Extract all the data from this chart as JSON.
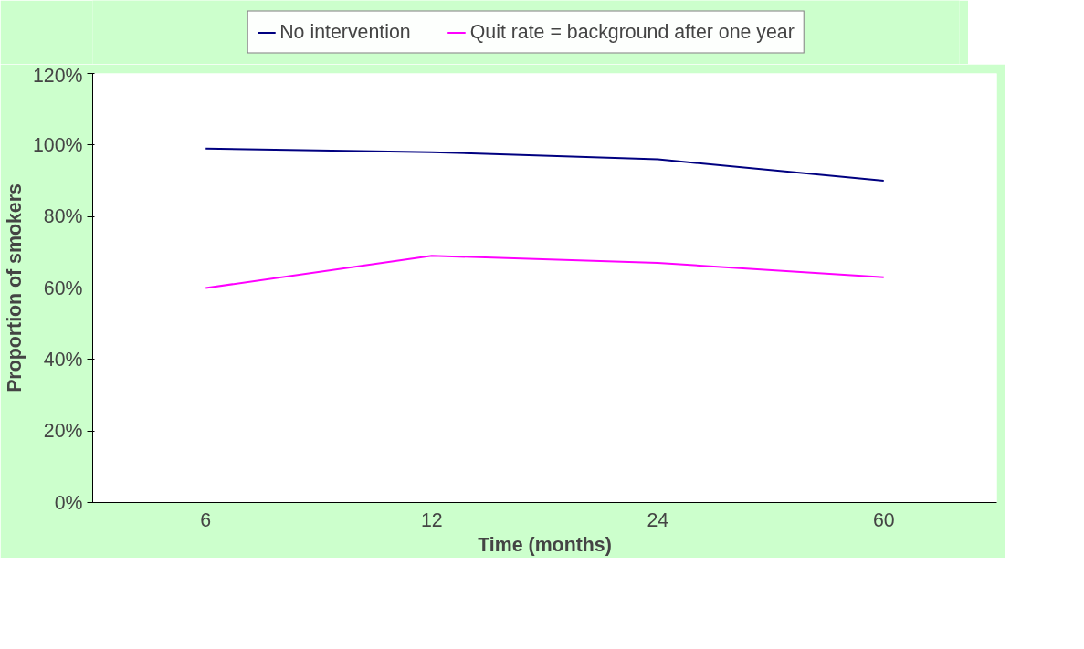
{
  "chart_data": {
    "type": "line",
    "xlabel": "Time (months)",
    "ylabel": "Proportion of smokers",
    "categories": [
      "6",
      "12",
      "24",
      "60"
    ],
    "series": [
      {
        "name": "No intervention",
        "color": "#000080",
        "values": [
          0.99,
          0.98,
          0.96,
          0.9
        ]
      },
      {
        "name": "Quit rate = background after one year",
        "color": "#ff00ff",
        "values": [
          0.6,
          0.69,
          0.67,
          0.63
        ]
      }
    ],
    "ylim": [
      0,
      1.2
    ],
    "yticks": [
      {
        "value": 0,
        "label": "0%"
      },
      {
        "value": 0.2,
        "label": "20%"
      },
      {
        "value": 0.4,
        "label": "40%"
      },
      {
        "value": 0.6,
        "label": "60%"
      },
      {
        "value": 0.8,
        "label": "80%"
      },
      {
        "value": 1.0,
        "label": "100%"
      },
      {
        "value": 1.2,
        "label": "120%"
      }
    ],
    "grid": false,
    "legend": "top",
    "marker": "none",
    "line_style": "solid"
  }
}
